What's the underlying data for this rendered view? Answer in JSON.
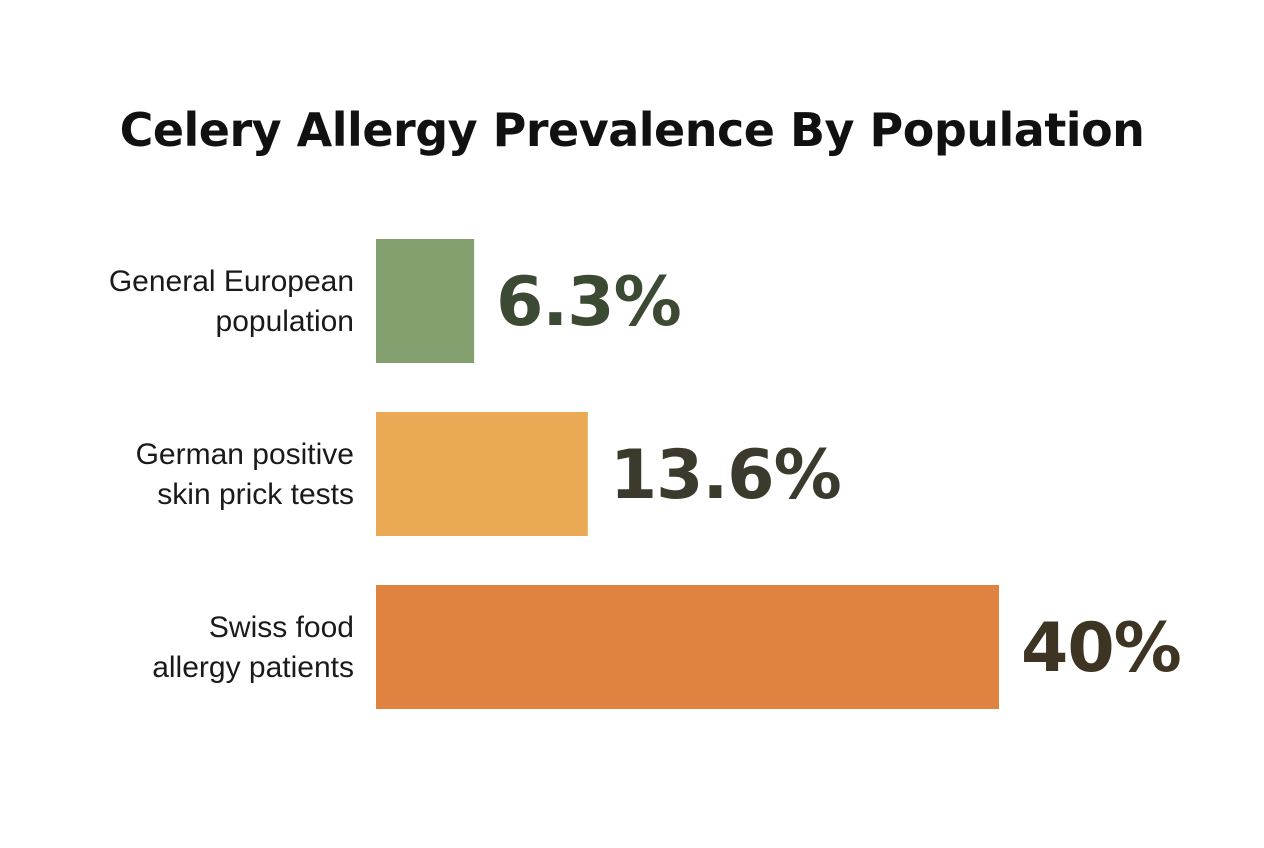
{
  "chart_data": {
    "type": "bar",
    "orientation": "horizontal",
    "title": "Celery Allergy Prevalence By Population",
    "categories": [
      [
        "General European",
        "population"
      ],
      [
        "German positive",
        "skin prick tests"
      ],
      [
        "Swiss food",
        "allergy patients"
      ]
    ],
    "values": [
      6.3,
      13.6,
      40
    ],
    "value_labels": [
      "6.3%",
      "13.6%",
      "40%"
    ],
    "unit": "%",
    "xlim": [
      0,
      40
    ],
    "grid": false,
    "legend": "none",
    "colors": [
      "#85a06f",
      "#eaaa55",
      "#e08240"
    ],
    "value_label_colors": [
      "#3d4a33",
      "#3b3a2c",
      "#3e3424"
    ]
  }
}
